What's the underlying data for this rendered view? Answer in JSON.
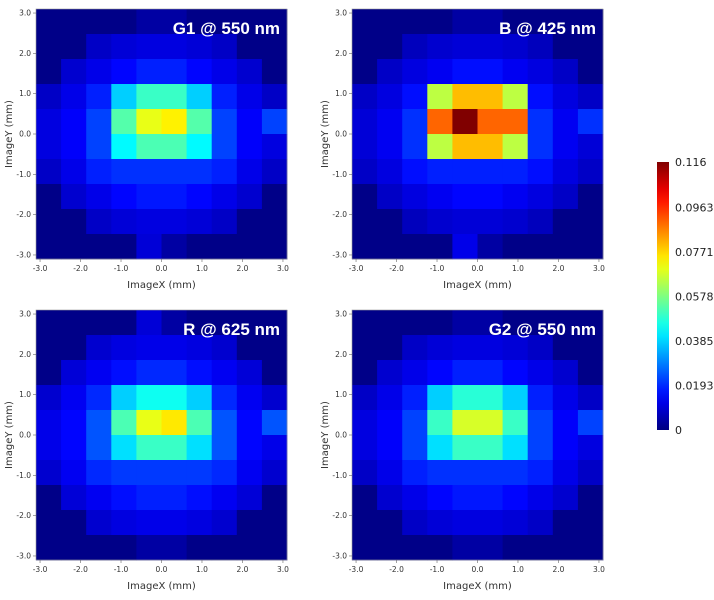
{
  "chart_data": [
    {
      "type": "heatmap",
      "title": "G1 @ 550 nm",
      "xlabel": "ImageX (mm)",
      "ylabel": "ImageY (mm)",
      "xticks": [
        "-3.0",
        "-2.0",
        "-1.0",
        "0.0",
        "1.0",
        "2.0",
        "3.0"
      ],
      "yticks": [
        "3.0",
        "2.0",
        "1.0",
        "0.0",
        "-1.0",
        "-2.0",
        "-3.0"
      ],
      "xlim": [
        -3.1,
        3.1
      ],
      "ylim": [
        -3.1,
        3.1
      ],
      "vmin": 0,
      "vmax": 0.116,
      "cell_size_mm": 0.62,
      "values": [
        [
          0.001,
          0.001,
          0.001,
          0.001,
          0.004,
          0.004,
          0.001,
          0.001,
          0.001,
          0.001
        ],
        [
          0.001,
          0.001,
          0.008,
          0.01,
          0.011,
          0.011,
          0.01,
          0.008,
          0.001,
          0.001
        ],
        [
          0.001,
          0.009,
          0.012,
          0.015,
          0.018,
          0.018,
          0.015,
          0.012,
          0.009,
          0.001
        ],
        [
          0.008,
          0.012,
          0.018,
          0.038,
          0.05,
          0.05,
          0.038,
          0.018,
          0.012,
          0.008
        ],
        [
          0.011,
          0.014,
          0.022,
          0.053,
          0.07,
          0.074,
          0.053,
          0.022,
          0.014,
          0.022
        ],
        [
          0.011,
          0.014,
          0.022,
          0.043,
          0.052,
          0.052,
          0.043,
          0.022,
          0.014,
          0.011
        ],
        [
          0.008,
          0.012,
          0.018,
          0.02,
          0.02,
          0.02,
          0.02,
          0.018,
          0.012,
          0.008
        ],
        [
          0.001,
          0.009,
          0.012,
          0.015,
          0.017,
          0.017,
          0.015,
          0.012,
          0.009,
          0.001
        ],
        [
          0.001,
          0.001,
          0.008,
          0.01,
          0.011,
          0.011,
          0.01,
          0.008,
          0.001,
          0.001
        ],
        [
          0.001,
          0.001,
          0.001,
          0.001,
          0.01,
          0.004,
          0.001,
          0.001,
          0.001,
          0.001
        ]
      ]
    },
    {
      "type": "heatmap",
      "title": "B @ 425 nm",
      "xlabel": "ImageX (mm)",
      "ylabel": "ImageY (mm)",
      "xticks": [
        "-3.0",
        "-2.0",
        "-1.0",
        "0.0",
        "1.0",
        "2.0",
        "3.0"
      ],
      "yticks": [
        "3.0",
        "2.0",
        "1.0",
        "0.0",
        "-1.0",
        "-2.0",
        "-3.0"
      ],
      "xlim": [
        -3.1,
        3.1
      ],
      "ylim": [
        -3.1,
        3.1
      ],
      "vmin": 0,
      "vmax": 0.116,
      "cell_size_mm": 0.62,
      "values": [
        [
          0.001,
          0.001,
          0.001,
          0.001,
          0.004,
          0.004,
          0.001,
          0.001,
          0.001,
          0.001
        ],
        [
          0.001,
          0.001,
          0.007,
          0.009,
          0.01,
          0.01,
          0.009,
          0.007,
          0.001,
          0.001
        ],
        [
          0.001,
          0.008,
          0.011,
          0.013,
          0.016,
          0.016,
          0.013,
          0.011,
          0.008,
          0.001
        ],
        [
          0.008,
          0.011,
          0.016,
          0.065,
          0.08,
          0.08,
          0.065,
          0.016,
          0.011,
          0.008
        ],
        [
          0.01,
          0.013,
          0.02,
          0.09,
          0.116,
          0.09,
          0.09,
          0.02,
          0.013,
          0.02
        ],
        [
          0.01,
          0.013,
          0.02,
          0.065,
          0.08,
          0.08,
          0.065,
          0.02,
          0.013,
          0.01
        ],
        [
          0.008,
          0.011,
          0.016,
          0.018,
          0.018,
          0.018,
          0.018,
          0.016,
          0.011,
          0.008
        ],
        [
          0.001,
          0.008,
          0.011,
          0.013,
          0.015,
          0.015,
          0.013,
          0.011,
          0.008,
          0.001
        ],
        [
          0.001,
          0.001,
          0.007,
          0.009,
          0.01,
          0.01,
          0.009,
          0.007,
          0.001,
          0.001
        ],
        [
          0.001,
          0.001,
          0.001,
          0.001,
          0.012,
          0.004,
          0.001,
          0.001,
          0.001,
          0.001
        ]
      ]
    },
    {
      "type": "heatmap",
      "title": "R @ 625 nm",
      "xlabel": "ImageX (mm)",
      "ylabel": "ImageY (mm)",
      "xticks": [
        "-3.0",
        "-2.0",
        "-1.0",
        "0.0",
        "1.0",
        "2.0",
        "3.0"
      ],
      "yticks": [
        "3.0",
        "2.0",
        "1.0",
        "0.0",
        "-1.0",
        "-2.0",
        "-3.0"
      ],
      "xlim": [
        -3.1,
        3.1
      ],
      "ylim": [
        -3.1,
        3.1
      ],
      "vmin": 0,
      "vmax": 0.116,
      "cell_size_mm": 0.62,
      "values": [
        [
          0.001,
          0.001,
          0.001,
          0.001,
          0.01,
          0.004,
          0.001,
          0.001,
          0.001,
          0.001
        ],
        [
          0.001,
          0.001,
          0.009,
          0.011,
          0.012,
          0.012,
          0.011,
          0.009,
          0.001,
          0.001
        ],
        [
          0.001,
          0.01,
          0.013,
          0.016,
          0.019,
          0.019,
          0.016,
          0.013,
          0.01,
          0.001
        ],
        [
          0.009,
          0.013,
          0.019,
          0.038,
          0.045,
          0.045,
          0.038,
          0.019,
          0.013,
          0.009
        ],
        [
          0.012,
          0.015,
          0.024,
          0.052,
          0.07,
          0.075,
          0.052,
          0.024,
          0.015,
          0.024
        ],
        [
          0.012,
          0.015,
          0.024,
          0.04,
          0.05,
          0.05,
          0.04,
          0.024,
          0.015,
          0.012
        ],
        [
          0.009,
          0.013,
          0.019,
          0.021,
          0.021,
          0.021,
          0.021,
          0.019,
          0.013,
          0.009
        ],
        [
          0.001,
          0.01,
          0.013,
          0.016,
          0.018,
          0.018,
          0.016,
          0.013,
          0.01,
          0.001
        ],
        [
          0.001,
          0.001,
          0.009,
          0.011,
          0.012,
          0.012,
          0.011,
          0.009,
          0.001,
          0.001
        ],
        [
          0.001,
          0.001,
          0.001,
          0.001,
          0.004,
          0.004,
          0.001,
          0.001,
          0.001,
          0.001
        ]
      ]
    },
    {
      "type": "heatmap",
      "title": "G2 @ 550 nm",
      "xlabel": "ImageX (mm)",
      "ylabel": "ImageY (mm)",
      "xticks": [
        "-3.0",
        "-2.0",
        "-1.0",
        "0.0",
        "1.0",
        "2.0",
        "3.0"
      ],
      "yticks": [
        "3.0",
        "2.0",
        "1.0",
        "0.0",
        "-1.0",
        "-2.0",
        "-3.0"
      ],
      "xlim": [
        -3.1,
        3.1
      ],
      "ylim": [
        -3.1,
        3.1
      ],
      "vmin": 0,
      "vmax": 0.116,
      "cell_size_mm": 0.62,
      "values": [
        [
          0.001,
          0.001,
          0.001,
          0.001,
          0.004,
          0.004,
          0.001,
          0.001,
          0.001,
          0.001
        ],
        [
          0.001,
          0.001,
          0.008,
          0.01,
          0.011,
          0.011,
          0.01,
          0.008,
          0.001,
          0.001
        ],
        [
          0.001,
          0.009,
          0.012,
          0.015,
          0.018,
          0.018,
          0.015,
          0.012,
          0.009,
          0.001
        ],
        [
          0.008,
          0.012,
          0.018,
          0.038,
          0.048,
          0.048,
          0.038,
          0.018,
          0.012,
          0.008
        ],
        [
          0.011,
          0.014,
          0.022,
          0.05,
          0.068,
          0.068,
          0.05,
          0.022,
          0.014,
          0.022
        ],
        [
          0.011,
          0.014,
          0.022,
          0.04,
          0.05,
          0.05,
          0.04,
          0.022,
          0.014,
          0.011
        ],
        [
          0.008,
          0.012,
          0.018,
          0.02,
          0.02,
          0.02,
          0.02,
          0.018,
          0.012,
          0.008
        ],
        [
          0.001,
          0.009,
          0.012,
          0.015,
          0.017,
          0.017,
          0.015,
          0.012,
          0.009,
          0.001
        ],
        [
          0.001,
          0.001,
          0.008,
          0.01,
          0.011,
          0.011,
          0.01,
          0.008,
          0.001,
          0.001
        ],
        [
          0.001,
          0.001,
          0.001,
          0.001,
          0.004,
          0.004,
          0.001,
          0.001,
          0.001,
          0.001
        ]
      ]
    }
  ],
  "colorbar": {
    "ticks": [
      "0.116",
      "0.0963",
      "0.0771",
      "0.0578",
      "0.0385",
      "0.0193",
      "0"
    ],
    "tick_values": [
      0.116,
      0.0963,
      0.0771,
      0.0578,
      0.0385,
      0.0193,
      0
    ],
    "colormap": "jet"
  },
  "colors": {
    "background": "#ffffff",
    "title_text": "#ffffff",
    "tick_text": "#333333"
  }
}
